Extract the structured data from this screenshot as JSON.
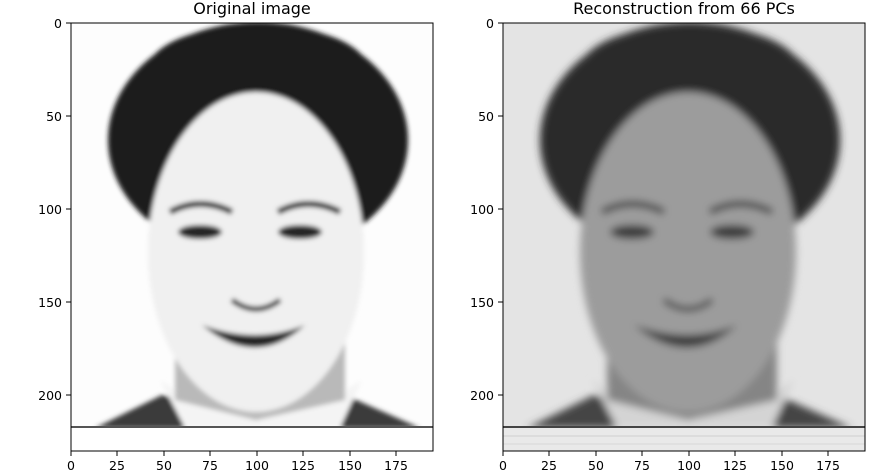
{
  "panels": [
    {
      "title": "Original image",
      "x_ticks": [
        "0",
        "25",
        "50",
        "75",
        "100",
        "125",
        "150",
        "175"
      ],
      "y_ticks": [
        "0",
        "50",
        "100",
        "150",
        "200"
      ],
      "style": {
        "background": "#fdfdfd",
        "hair": "#1f1f1f",
        "skin": "#f0f0f0",
        "neck": "#b9b9b9",
        "jacket": "#3a3a3a",
        "shirt": "#f4f4f4",
        "feature": "#262626"
      }
    },
    {
      "title": "Reconstruction from 66 PCs",
      "x_ticks": [
        "0",
        "25",
        "50",
        "75",
        "100",
        "125",
        "150",
        "175"
      ],
      "y_ticks": [
        "0",
        "50",
        "100",
        "150",
        "200"
      ],
      "style": {
        "background": "#e4e4e4",
        "hair": "#2b2b2b",
        "skin": "#9c9c9c",
        "neck": "#858585",
        "jacket": "#454545",
        "shirt": "#d4d4d4",
        "feature": "#3a3a3a"
      }
    }
  ],
  "chart_data": {
    "type": "image",
    "x_range": [
      0,
      195
    ],
    "y_range": [
      0,
      231
    ],
    "y_inverted": true
  }
}
